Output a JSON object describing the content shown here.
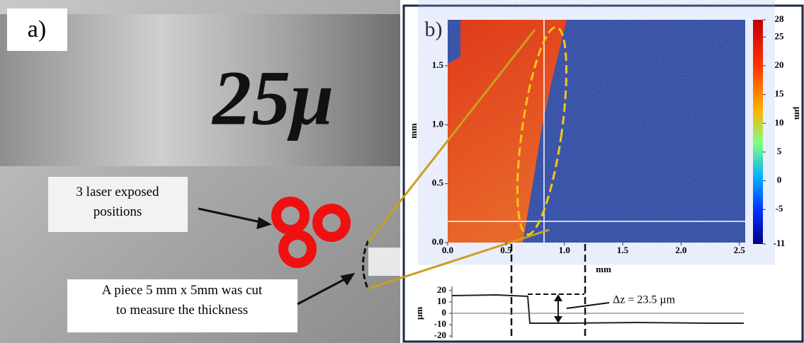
{
  "panel_a": {
    "label": "a)",
    "handwriting": "25μ",
    "callouts": [
      "3 laser exposed positions",
      "A piece 5 mm x 5mm was cut to measure the thickness"
    ]
  },
  "panel_b": {
    "label": "b)",
    "map": {
      "xlabel": "mm",
      "ylabel": "mm",
      "xlim": [
        0,
        2.55
      ],
      "ylim": [
        0,
        1.89
      ],
      "xticks": [
        {
          "value": 0,
          "label": "0.0"
        },
        {
          "value": 0.5,
          "label": "0.5"
        },
        {
          "value": 1,
          "label": "1.0"
        },
        {
          "value": 1.5,
          "label": "1.5"
        },
        {
          "value": 2,
          "label": "2.0"
        },
        {
          "value": 2.5,
          "label": "2.5"
        }
      ],
      "yticks": [
        {
          "value": 0,
          "label": "0.0"
        },
        {
          "value": 0.5,
          "label": "0.5"
        },
        {
          "value": 1,
          "label": "1.0"
        },
        {
          "value": 1.5,
          "label": "1.5"
        }
      ]
    },
    "colorbar": {
      "label": "µm",
      "lim": [
        -11,
        28
      ],
      "ticks": [
        28,
        25,
        20,
        15,
        10,
        5,
        0,
        -5,
        -11
      ]
    },
    "profile": {
      "ylabel": "µm",
      "ylim": [
        -23,
        23
      ],
      "yticks": [
        20,
        10,
        0,
        -10,
        -20
      ],
      "annotation": "Δz = 23.5 µm"
    }
  }
}
